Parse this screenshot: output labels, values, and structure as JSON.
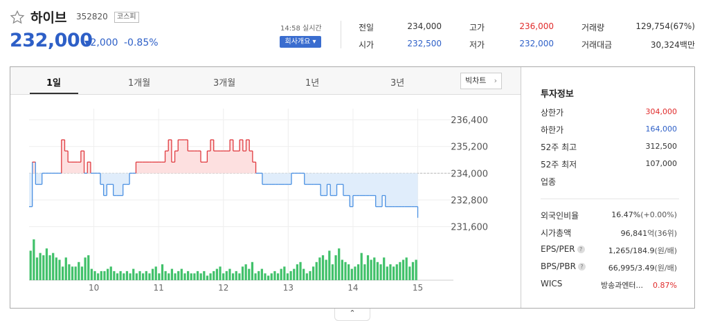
{
  "stock": {
    "name": "하이브",
    "code": "352820",
    "market": "코스피",
    "price": "232,000",
    "change": "2,000",
    "change_arrow": "▼",
    "change_pct": "-0.85%",
    "time_label": "14:58 실시간",
    "company_button": "회사개요 ▾"
  },
  "quote": {
    "prev_close_label": "전일",
    "prev_close": "234,000",
    "open_label": "시가",
    "open": "232,500",
    "high_label": "고가",
    "high": "236,000",
    "low_label": "저가",
    "low": "232,000",
    "volume_label": "거래량",
    "volume": "129,754(67%)",
    "amount_label": "거래대금",
    "amount": "30,324백만"
  },
  "tabs": [
    "1일",
    "1개월",
    "3개월",
    "1년",
    "3년"
  ],
  "big_chart_button": "빅차트",
  "invest": {
    "title": "투자정보",
    "rows_top": [
      {
        "label": "상한가",
        "value": "304,000",
        "color": "#e02b2b"
      },
      {
        "label": "하한가",
        "value": "164,000",
        "color": "#2d5fc7"
      },
      {
        "label": "52주 최고",
        "value": "312,500",
        "color": "#333333"
      },
      {
        "label": "52주 최저",
        "value": "107,000",
        "color": "#333333"
      },
      {
        "label": "업종",
        "value": "",
        "color": "#333333"
      }
    ],
    "rows_bottom": [
      {
        "label": "외국인비율",
        "value": "16.47%",
        "value2": "(+0.00%)"
      },
      {
        "label": "시가총액",
        "value": "96,841",
        "value2": "억(36위)"
      },
      {
        "label": "EPS/PER",
        "value": "1,265/184.9",
        "value2": "(원/배)",
        "help": "?"
      },
      {
        "label": "BPS/PBR",
        "value": "66,995/3.49",
        "value2": "(원/배)",
        "help": "?"
      },
      {
        "label": "WICS",
        "value": "방송과엔터...",
        "value2": "0.87%"
      }
    ]
  },
  "chart_data": {
    "type": "line",
    "ylim": [
      231000,
      236900
    ],
    "y_ticks": [
      236400,
      235200,
      234000,
      232800,
      231600
    ],
    "y_tick_labels": [
      "236,400",
      "235,200",
      "234,000",
      "232,800",
      "231,600"
    ],
    "x_tick_labels": [
      "10",
      "11",
      "12",
      "13",
      "14",
      "15"
    ],
    "x_tick_positions": [
      10,
      11,
      12,
      13,
      14,
      15
    ],
    "xlim": [
      9.0,
      15.55
    ],
    "baseline": 234000,
    "series": [
      {
        "x": [
          9.0,
          9.05,
          9.1,
          9.15,
          9.2,
          9.25,
          9.3,
          9.35,
          9.4,
          9.45,
          9.5,
          9.55,
          9.6,
          9.65,
          9.7,
          9.75,
          9.8,
          9.85,
          9.9,
          9.95,
          10.0,
          10.05,
          10.1,
          10.15,
          10.2,
          10.25,
          10.3,
          10.35,
          10.4,
          10.45,
          10.5,
          10.55,
          10.6,
          10.65,
          10.7,
          10.75,
          10.8,
          10.85,
          10.9,
          10.95,
          11.0,
          11.05,
          11.1,
          11.15,
          11.2,
          11.25,
          11.3,
          11.35,
          11.4,
          11.45,
          11.5,
          11.55,
          11.6,
          11.65,
          11.7,
          11.75,
          11.8,
          11.85,
          11.9,
          11.95,
          12.0,
          12.05,
          12.1,
          12.15,
          12.2,
          12.25,
          12.3,
          12.35,
          12.4,
          12.45,
          12.5,
          12.55,
          12.6,
          12.65,
          12.7,
          12.75,
          12.8,
          12.85,
          12.9,
          12.95,
          13.0,
          13.05,
          13.1,
          13.15,
          13.2,
          13.25,
          13.3,
          13.35,
          13.4,
          13.45,
          13.5,
          13.55,
          13.6,
          13.65,
          13.7,
          13.75,
          13.8,
          13.85,
          13.9,
          13.95,
          14.0,
          14.05,
          14.1,
          14.15,
          14.2,
          14.25,
          14.3,
          14.35,
          14.4,
          14.45,
          14.5,
          14.55,
          14.6,
          14.65,
          14.7,
          14.75,
          14.8,
          14.85,
          14.9,
          14.95,
          15.0
        ],
        "values": [
          232500,
          234500,
          233500,
          233500,
          234000,
          234000,
          234000,
          234000,
          234000,
          234000,
          235500,
          235000,
          234500,
          234500,
          234500,
          234500,
          235000,
          234000,
          234500,
          234000,
          234000,
          234000,
          233500,
          233000,
          233500,
          233500,
          233000,
          233000,
          233000,
          233500,
          233500,
          234000,
          234000,
          234500,
          234500,
          234500,
          234500,
          234500,
          234500,
          234500,
          234500,
          234500,
          235000,
          235500,
          234500,
          235000,
          235500,
          235500,
          235500,
          235000,
          235000,
          235000,
          235000,
          234500,
          234500,
          235000,
          235500,
          235000,
          235000,
          235000,
          235000,
          235000,
          235500,
          235000,
          235000,
          235500,
          235000,
          235500,
          235000,
          234500,
          234000,
          234000,
          233500,
          233500,
          233500,
          233500,
          233500,
          233500,
          233500,
          233500,
          233500,
          234000,
          234000,
          234000,
          234000,
          233500,
          233500,
          233500,
          233500,
          233500,
          233000,
          233000,
          233500,
          233000,
          233000,
          233500,
          233500,
          233000,
          233000,
          232500,
          233000,
          233000,
          233000,
          233000,
          233000,
          233000,
          233000,
          232500,
          232500,
          233000,
          232500,
          232500,
          232500,
          232500,
          232500,
          232500,
          232500,
          232500,
          232500,
          232500,
          232000
        ]
      }
    ],
    "volume": [
      26,
      36,
      20,
      24,
      22,
      28,
      22,
      24,
      20,
      18,
      12,
      20,
      14,
      12,
      12,
      16,
      12,
      20,
      22,
      10,
      8,
      6,
      8,
      8,
      10,
      12,
      8,
      6,
      8,
      6,
      8,
      6,
      10,
      6,
      8,
      6,
      8,
      6,
      10,
      12,
      6,
      14,
      8,
      6,
      10,
      6,
      8,
      10,
      6,
      8,
      6,
      6,
      8,
      6,
      8,
      4,
      6,
      8,
      10,
      12,
      6,
      8,
      10,
      6,
      8,
      6,
      12,
      14,
      10,
      16,
      6,
      8,
      10,
      6,
      4,
      6,
      8,
      6,
      10,
      12,
      6,
      8,
      10,
      14,
      16,
      10,
      6,
      8,
      12,
      16,
      20,
      22,
      18,
      26,
      14,
      22,
      28,
      18,
      16,
      14,
      10,
      12,
      14,
      24,
      14,
      22,
      18,
      20,
      16,
      14,
      20,
      12,
      14,
      12,
      14,
      16,
      18,
      20,
      12,
      16,
      18
    ]
  }
}
